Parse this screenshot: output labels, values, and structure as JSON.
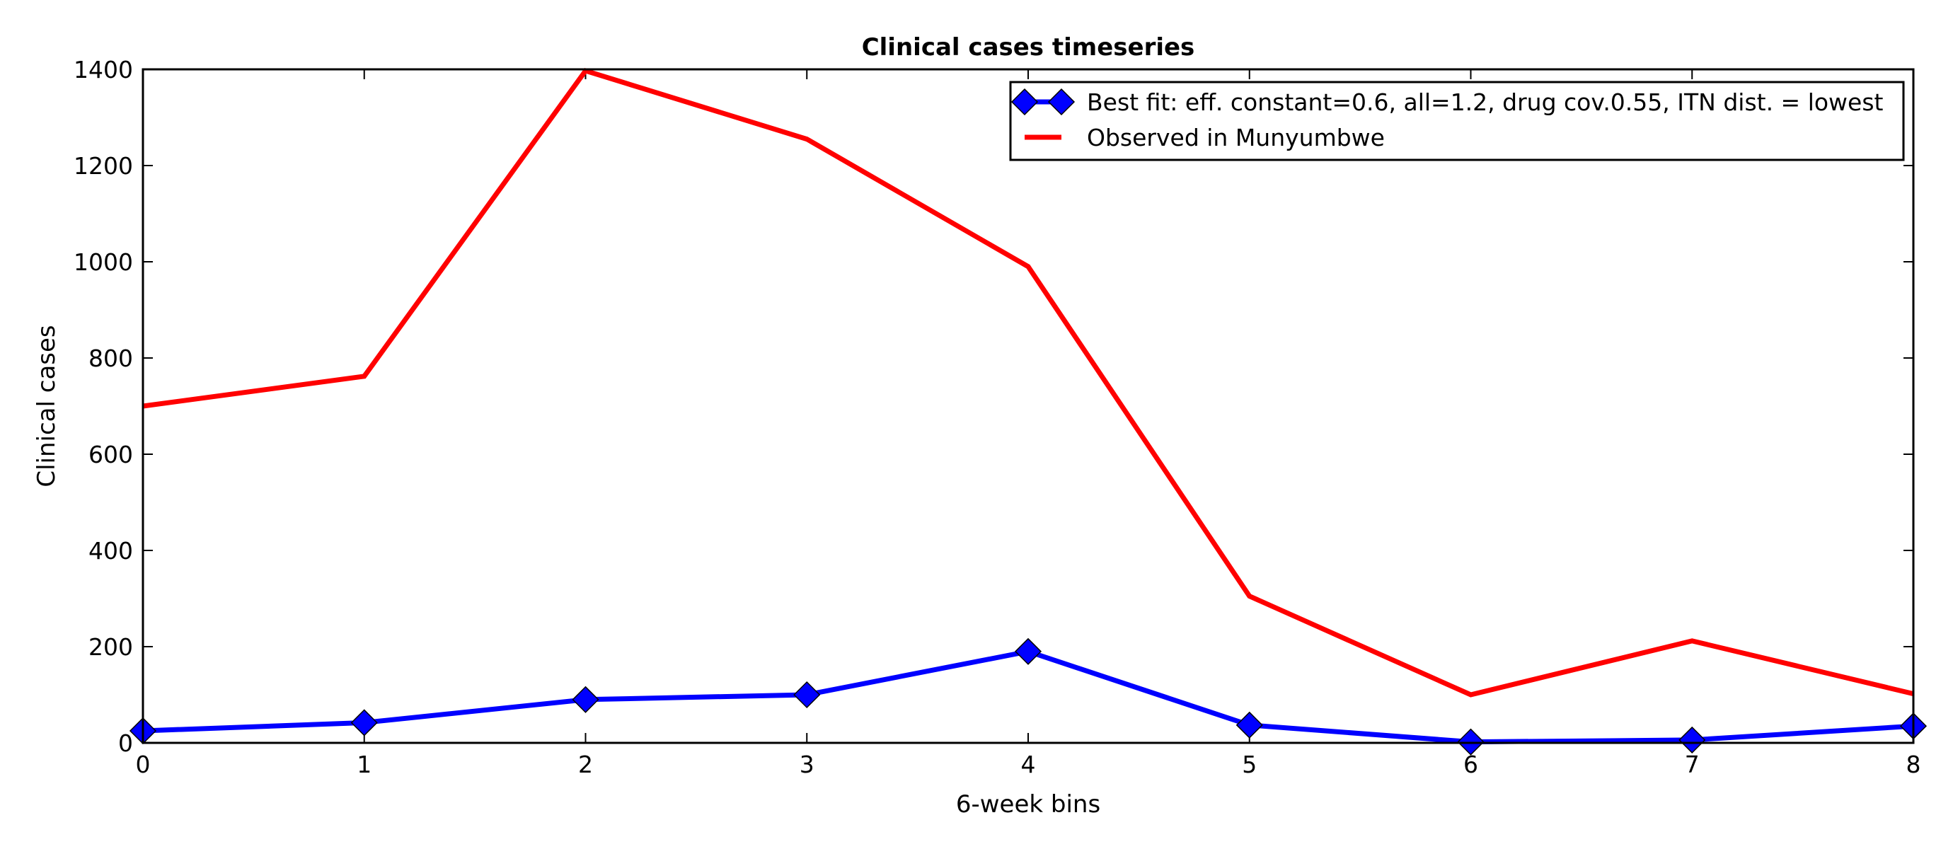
{
  "chart_data": {
    "type": "line",
    "title": "Clinical cases timeseries",
    "xlabel": "6-week bins",
    "ylabel": "Clinical cases",
    "x": [
      0,
      1,
      2,
      3,
      4,
      5,
      6,
      7,
      8
    ],
    "xlim": [
      0,
      8
    ],
    "ylim": [
      0,
      1400
    ],
    "xticks": [
      "0",
      "1",
      "2",
      "3",
      "4",
      "5",
      "6",
      "7",
      "8"
    ],
    "yticks": [
      "0",
      "200",
      "400",
      "600",
      "800",
      "1000",
      "1200",
      "1400"
    ],
    "grid": false,
    "legend_position": "top-right",
    "series": [
      {
        "name": "Best fit: eff. constant=0.6, all=1.2, drug cov.0.55, ITN dist. = lowest",
        "color": "#0000ff",
        "marker": "diamond",
        "values": [
          25,
          42,
          90,
          100,
          190,
          37,
          2,
          6,
          35
        ]
      },
      {
        "name": "Observed in Munyumbwe",
        "color": "#ff0000",
        "marker": "none",
        "values": [
          700,
          762,
          1397,
          1255,
          990,
          305,
          100,
          212,
          102
        ]
      }
    ]
  }
}
